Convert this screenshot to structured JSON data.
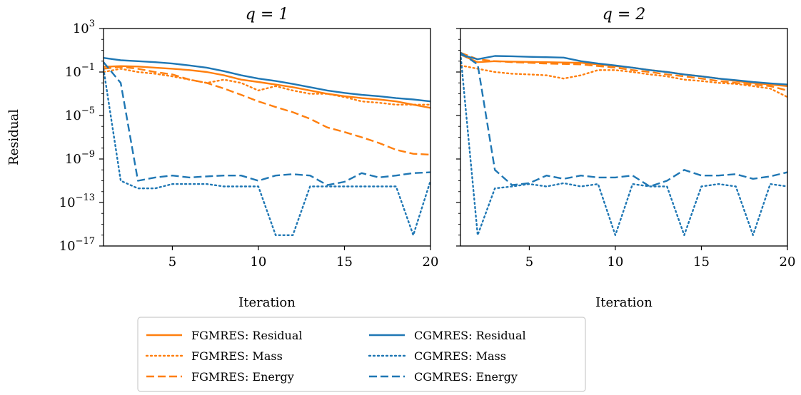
{
  "chart_data": [
    {
      "type": "line",
      "title": "q = 1",
      "xlabel": "Iteration",
      "ylabel": "Residual",
      "xlim": [
        1,
        20
      ],
      "ylim_log10": [
        -17,
        3
      ],
      "yscale": "log",
      "xticks": [
        5,
        10,
        15,
        20
      ],
      "yticks": [
        {
          "base": "10",
          "exp": "3"
        },
        {
          "base": "10",
          "exp": "−1"
        },
        {
          "base": "10",
          "exp": "−5"
        },
        {
          "base": "10",
          "exp": "−9"
        },
        {
          "base": "10",
          "exp": "−13"
        },
        {
          "base": "10",
          "exp": "−17"
        }
      ],
      "x": [
        1,
        2,
        3,
        4,
        5,
        6,
        7,
        8,
        9,
        10,
        11,
        12,
        13,
        14,
        15,
        16,
        17,
        18,
        19,
        20
      ],
      "series": [
        {
          "name": "FGMRES: Residual",
          "color": "#ff7f0e",
          "style": "solid",
          "values": [
            0.3,
            0.35,
            0.32,
            0.25,
            0.2,
            0.15,
            0.1,
            0.05,
            0.02,
            0.012,
            0.007,
            0.004,
            0.002,
            0.001,
            0.0006,
            0.0004,
            0.0003,
            0.0002,
            0.0001,
            5e-05
          ]
        },
        {
          "name": "FGMRES: Mass",
          "color": "#ff7f0e",
          "style": "dotted",
          "values": [
            0.1,
            0.2,
            0.1,
            0.07,
            0.04,
            0.02,
            0.01,
            0.02,
            0.01,
            0.002,
            0.005,
            0.002,
            0.001,
            0.001,
            0.0005,
            0.0002,
            0.00015,
            0.0001,
            0.0001,
            0.0001
          ]
        },
        {
          "name": "FGMRES: Energy",
          "color": "#ff7f0e",
          "style": "dashed",
          "values": [
            0.2,
            0.3,
            0.2,
            0.1,
            0.06,
            0.02,
            0.01,
            0.003,
            0.0008,
            0.0002,
            6e-05,
            2e-05,
            5e-06,
            8e-07,
            3e-07,
            1e-07,
            3e-08,
            7e-09,
            3e-09,
            2.5e-09
          ]
        },
        {
          "name": "CGMRES: Residual",
          "color": "#1f77b4",
          "style": "solid",
          "values": [
            2,
            1.2,
            1,
            0.8,
            0.6,
            0.4,
            0.25,
            0.12,
            0.05,
            0.025,
            0.015,
            0.008,
            0.004,
            0.002,
            0.0012,
            0.0008,
            0.0006,
            0.0004,
            0.0003,
            0.0002
          ]
        },
        {
          "name": "CGMRES: Mass",
          "color": "#1f77b4",
          "style": "dotted",
          "values": [
            0.2,
            1e-11,
            2e-12,
            2e-12,
            5e-12,
            5e-12,
            5e-12,
            3e-12,
            3e-12,
            3e-12,
            1e-16,
            1e-16,
            3e-12,
            3e-12,
            3e-12,
            3e-12,
            3e-12,
            3e-12,
            1e-16,
            1e-11
          ]
        },
        {
          "name": "CGMRES: Energy",
          "color": "#1f77b4",
          "style": "dashed",
          "values": [
            0.8,
            0.01,
            1e-11,
            2e-11,
            3e-11,
            2e-11,
            2.5e-11,
            3e-11,
            3e-11,
            1e-11,
            3e-11,
            4e-11,
            3e-11,
            4e-12,
            8e-12,
            5e-11,
            2e-11,
            3e-11,
            5e-11,
            6e-11
          ]
        }
      ]
    },
    {
      "type": "line",
      "title": "q = 2",
      "xlabel": "Iteration",
      "ylabel": "",
      "xlim": [
        1,
        20
      ],
      "ylim_log10": [
        -17,
        3
      ],
      "yscale": "log",
      "xticks": [
        5,
        10,
        15,
        20
      ],
      "x": [
        1,
        2,
        3,
        4,
        5,
        6,
        7,
        8,
        9,
        10,
        11,
        12,
        13,
        14,
        15,
        16,
        17,
        18,
        19,
        20
      ],
      "series": [
        {
          "name": "FGMRES: Residual",
          "color": "#ff7f0e",
          "style": "solid",
          "values": [
            4,
            0.8,
            1,
            0.9,
            0.85,
            0.8,
            0.75,
            0.7,
            0.5,
            0.35,
            0.25,
            0.15,
            0.1,
            0.06,
            0.04,
            0.025,
            0.015,
            0.01,
            0.007,
            0.005
          ]
        },
        {
          "name": "FGMRES: Mass",
          "color": "#ff7f0e",
          "style": "dotted",
          "values": [
            0.4,
            0.2,
            0.1,
            0.07,
            0.06,
            0.05,
            0.025,
            0.05,
            0.15,
            0.15,
            0.1,
            0.06,
            0.04,
            0.02,
            0.015,
            0.01,
            0.008,
            0.005,
            0.003,
            0.0005
          ]
        },
        {
          "name": "FGMRES: Energy",
          "color": "#ff7f0e",
          "style": "dashed",
          "values": [
            6,
            1.5,
            1,
            0.8,
            0.7,
            0.6,
            0.55,
            0.5,
            0.35,
            0.25,
            0.15,
            0.1,
            0.06,
            0.04,
            0.025,
            0.015,
            0.01,
            0.007,
            0.005,
            0.002
          ]
        },
        {
          "name": "CGMRES: Residual",
          "color": "#1f77b4",
          "style": "solid",
          "values": [
            4,
            1.5,
            3,
            2.8,
            2.5,
            2.3,
            2.1,
            1,
            0.6,
            0.4,
            0.25,
            0.15,
            0.1,
            0.06,
            0.04,
            0.025,
            0.018,
            0.012,
            0.009,
            0.007
          ]
        },
        {
          "name": "CGMRES: Mass",
          "color": "#1f77b4",
          "style": "dotted",
          "values": [
            5,
            1e-16,
            2e-12,
            3e-12,
            5e-12,
            3e-12,
            6e-12,
            3e-12,
            5e-12,
            1e-16,
            5e-12,
            3e-12,
            3e-12,
            1e-16,
            3e-12,
            5e-12,
            3e-12,
            1e-16,
            5e-12,
            3e-12
          ]
        },
        {
          "name": "CGMRES: Energy",
          "color": "#1f77b4",
          "style": "dashed",
          "values": [
            6,
            0.5,
            1e-10,
            4e-12,
            6e-12,
            3e-11,
            1.5e-11,
            3e-11,
            2e-11,
            2e-11,
            3e-11,
            3e-12,
            1e-11,
            1e-10,
            3e-11,
            3e-11,
            4e-11,
            1.5e-11,
            2.5e-11,
            6e-11
          ]
        }
      ]
    }
  ],
  "legend": {
    "placement": "bottom-center",
    "entries": [
      {
        "label": "FGMRES: Residual",
        "color": "#ff7f0e",
        "style": "solid"
      },
      {
        "label": "FGMRES: Mass",
        "color": "#ff7f0e",
        "style": "dotted"
      },
      {
        "label": "FGMRES: Energy",
        "color": "#ff7f0e",
        "style": "dashed"
      },
      {
        "label": "CGMRES: Residual",
        "color": "#1f77b4",
        "style": "solid"
      },
      {
        "label": "CGMRES: Mass",
        "color": "#1f77b4",
        "style": "dotted"
      },
      {
        "label": "CGMRES: Energy",
        "color": "#1f77b4",
        "style": "dashed"
      }
    ]
  }
}
